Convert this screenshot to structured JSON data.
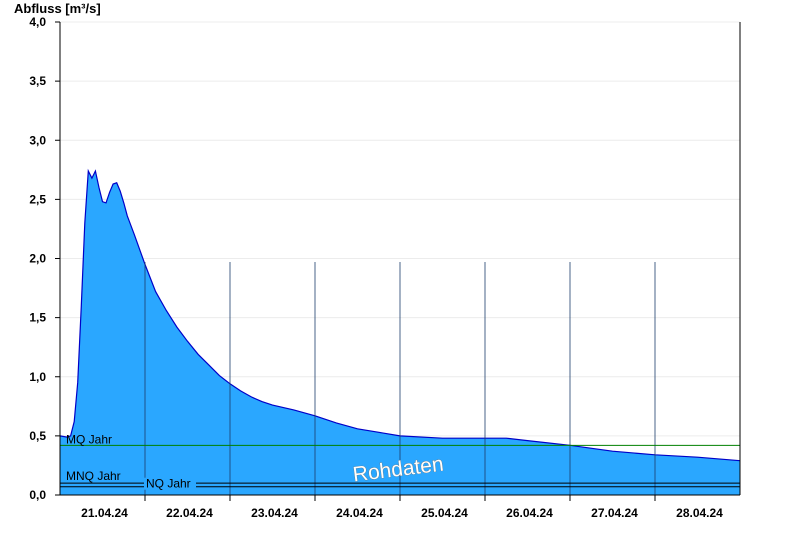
{
  "chart_data": {
    "type": "area",
    "ylabel": "Abfluss [m³/s]",
    "ylim": [
      0,
      4.0
    ],
    "yticks": [
      {
        "value": 0.0,
        "label": "0,0"
      },
      {
        "value": 0.5,
        "label": "0,5"
      },
      {
        "value": 1.0,
        "label": "1,0"
      },
      {
        "value": 1.5,
        "label": "1,5"
      },
      {
        "value": 2.0,
        "label": "2,0"
      },
      {
        "value": 2.5,
        "label": "2,5"
      },
      {
        "value": 3.0,
        "label": "3,0"
      },
      {
        "value": 3.5,
        "label": "3,5"
      },
      {
        "value": 4.0,
        "label": "4,0"
      }
    ],
    "xlim": [
      "2024-04-20T12:00",
      "2024-04-28T12:00"
    ],
    "xticks": [
      {
        "value": "2024-04-21T00:00",
        "label": "21.04.24"
      },
      {
        "value": "2024-04-22T00:00",
        "label": "22.04.24"
      },
      {
        "value": "2024-04-23T00:00",
        "label": "23.04.24"
      },
      {
        "value": "2024-04-24T00:00",
        "label": "24.04.24"
      },
      {
        "value": "2024-04-25T00:00",
        "label": "25.04.24"
      },
      {
        "value": "2024-04-26T00:00",
        "label": "26.04.24"
      },
      {
        "value": "2024-04-27T00:00",
        "label": "27.04.24"
      },
      {
        "value": "2024-04-28T00:00",
        "label": "28.04.24"
      }
    ],
    "grid": true,
    "fill_color": "#2aa7ff",
    "line_color": "#0000c8",
    "series": [
      {
        "x": [
          "2024-04-20T12:00",
          "2024-04-20T14:00",
          "2024-04-20T15:00",
          "2024-04-20T16:00",
          "2024-04-20T17:00",
          "2024-04-20T18:00",
          "2024-04-20T19:00",
          "2024-04-20T20:00",
          "2024-04-20T21:00",
          "2024-04-20T22:00",
          "2024-04-20T23:00",
          "2024-04-21T00:00",
          "2024-04-21T01:00",
          "2024-04-21T02:00",
          "2024-04-21T03:00",
          "2024-04-21T04:00",
          "2024-04-21T05:00",
          "2024-04-21T06:00",
          "2024-04-21T07:00",
          "2024-04-21T09:00",
          "2024-04-21T12:00",
          "2024-04-21T15:00",
          "2024-04-21T18:00",
          "2024-04-21T21:00",
          "2024-04-22T00:00",
          "2024-04-22T03:00",
          "2024-04-22T06:00",
          "2024-04-22T09:00",
          "2024-04-22T12:00",
          "2024-04-22T15:00",
          "2024-04-22T18:00",
          "2024-04-22T21:00",
          "2024-04-23T00:00",
          "2024-04-23T06:00",
          "2024-04-23T12:00",
          "2024-04-23T18:00",
          "2024-04-24T00:00",
          "2024-04-24T06:00",
          "2024-04-24T12:00",
          "2024-04-25T00:00",
          "2024-04-25T12:00",
          "2024-04-25T18:00",
          "2024-04-26T00:00",
          "2024-04-26T12:00",
          "2024-04-27T00:00",
          "2024-04-27T12:00",
          "2024-04-28T00:00",
          "2024-04-28T12:00"
        ],
        "values": [
          0.5,
          0.49,
          0.5,
          0.62,
          0.95,
          1.6,
          2.3,
          2.74,
          2.68,
          2.74,
          2.6,
          2.48,
          2.47,
          2.56,
          2.63,
          2.64,
          2.57,
          2.47,
          2.36,
          2.2,
          1.95,
          1.72,
          1.56,
          1.42,
          1.3,
          1.19,
          1.1,
          1.01,
          0.94,
          0.88,
          0.83,
          0.79,
          0.76,
          0.72,
          0.67,
          0.61,
          0.56,
          0.53,
          0.5,
          0.48,
          0.48,
          0.48,
          0.46,
          0.42,
          0.37,
          0.34,
          0.32,
          0.29
        ]
      }
    ],
    "reference_lines": [
      {
        "label": "MQ Jahr",
        "value": 0.42,
        "color": "#008000"
      },
      {
        "label": "MNQ Jahr",
        "value": 0.1,
        "color": "#000000"
      },
      {
        "label": "NQ Jahr",
        "value": 0.07,
        "color": "#000000"
      }
    ],
    "annotation": "Rohdaten"
  }
}
